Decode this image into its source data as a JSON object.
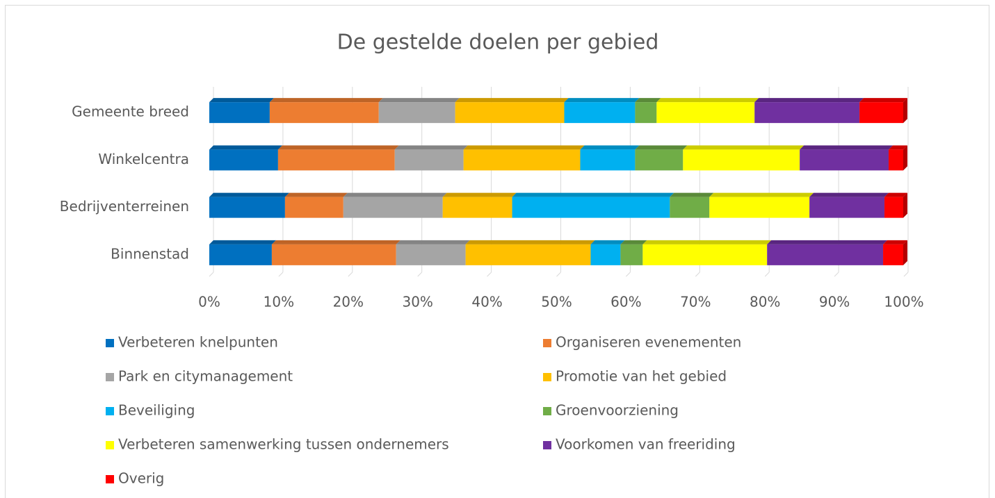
{
  "chart_data": {
    "type": "stacked_barh",
    "title": "De gestelde doelen per gebied",
    "categories": [
      "Gemeente breed",
      "Winkelcentra",
      "Bedrijventerreinen",
      "Binnenstad"
    ],
    "series": [
      {
        "name": "Verbeteren knelpunten",
        "color": "#0070c0",
        "values": [
          8.7,
          9.9,
          10.9,
          9.0
        ]
      },
      {
        "name": "Organiseren evenementen",
        "color": "#ed7d31",
        "values": [
          15.7,
          16.8,
          8.4,
          17.9
        ]
      },
      {
        "name": "Park en citymanagement",
        "color": "#a5a5a5",
        "values": [
          11.0,
          9.9,
          14.3,
          10.0
        ]
      },
      {
        "name": "Promotie van het gebied",
        "color": "#ffc000",
        "values": [
          15.7,
          16.8,
          10.0,
          18.0
        ]
      },
      {
        "name": "Beveiliging",
        "color": "#00b0f0",
        "values": [
          10.2,
          7.9,
          22.7,
          4.3
        ]
      },
      {
        "name": "Groenvoorziening",
        "color": "#70ad47",
        "values": [
          3.1,
          6.9,
          5.7,
          3.2
        ]
      },
      {
        "name": "Verbeteren samenwerking tussen ondernemers",
        "color": "#ffff00",
        "values": [
          14.1,
          16.8,
          14.4,
          17.9
        ]
      },
      {
        "name": "Voorkomen van freeriding",
        "color": "#7030a0",
        "values": [
          15.1,
          12.8,
          10.8,
          16.7
        ]
      },
      {
        "name": "Overig",
        "color": "#ff0000",
        "values": [
          6.3,
          2.1,
          2.7,
          2.9
        ]
      }
    ],
    "xlim": [
      0,
      100
    ],
    "xticks": [
      {
        "value": 0,
        "label": "0%"
      },
      {
        "value": 10,
        "label": "10%"
      },
      {
        "value": 20,
        "label": "20%"
      },
      {
        "value": 30,
        "label": "30%"
      },
      {
        "value": 40,
        "label": "40%"
      },
      {
        "value": 50,
        "label": "50%"
      },
      {
        "value": 60,
        "label": "60%"
      },
      {
        "value": 70,
        "label": "70%"
      },
      {
        "value": 80,
        "label": "80%"
      },
      {
        "value": 90,
        "label": "90%"
      },
      {
        "value": 100,
        "label": "100%"
      }
    ],
    "grid": true
  }
}
